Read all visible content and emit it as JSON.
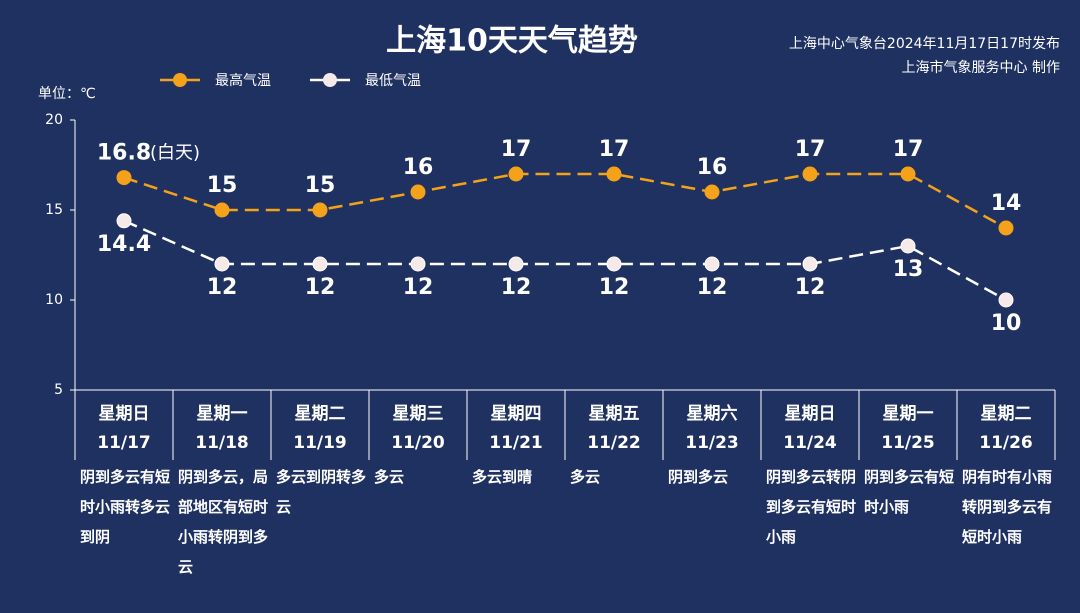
{
  "chart_data": {
    "type": "line",
    "title": "上海10天天气趋势",
    "source": [
      "上海中心气象台2024年11月17日17时发布",
      "上海市气象服务中心 制作"
    ],
    "unit_label": "单位：℃",
    "categories": [
      "11/17",
      "11/18",
      "11/19",
      "11/20",
      "11/21",
      "11/22",
      "11/23",
      "11/24",
      "11/25",
      "11/26"
    ],
    "weekdays": [
      "星期日",
      "星期一",
      "星期二",
      "星期三",
      "星期四",
      "星期五",
      "星期六",
      "星期日",
      "星期一",
      "星期二"
    ],
    "weather": [
      "阴到多云有短时小雨转多云到阴",
      "阴到多云，局部地区有短时小雨转阴到多云",
      "多云到阴转多云",
      "多云",
      "多云到晴",
      "多云",
      "阴到多云",
      "阴到多云转阴到多云有短时小雨",
      "阴到多云有短时小雨",
      "阴有时有小雨转阴到多云有短时小雨"
    ],
    "series": [
      {
        "name": "最高气温",
        "color": "#f5a21b",
        "values": [
          16.8,
          15,
          15,
          16,
          17,
          17,
          16,
          17,
          17,
          14
        ]
      },
      {
        "name": "最低气温",
        "color": "#ffffff",
        "values": [
          14.4,
          12,
          12,
          12,
          12,
          12,
          12,
          12,
          13,
          10
        ]
      }
    ],
    "annotation": "(白天)",
    "ylim": [
      5,
      20
    ],
    "yticks": [
      5,
      10,
      15,
      20
    ]
  }
}
